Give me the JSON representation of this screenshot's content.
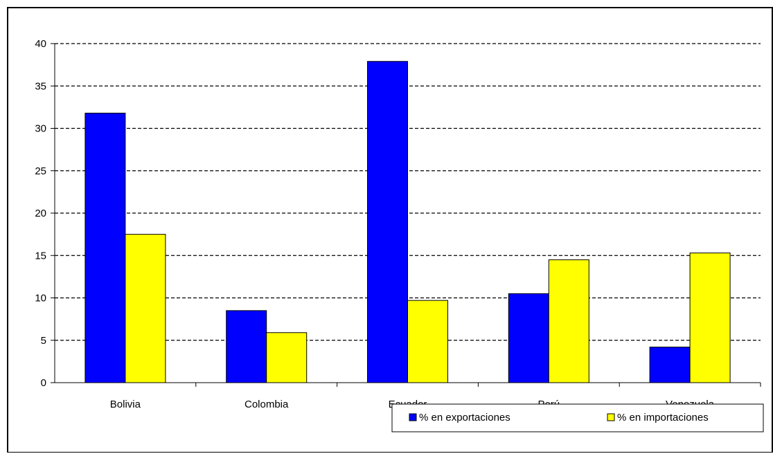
{
  "colors": {
    "series_export": "#0000FF",
    "series_import": "#FFFF00",
    "bar_outline": "#000000",
    "grid": "#000000",
    "background": "#FFFFFF"
  },
  "chart_data": {
    "type": "bar",
    "title": "",
    "xlabel": "",
    "ylabel": "",
    "categories": [
      "Bolivia",
      "Colombia",
      "Ecuador",
      "Perú",
      "Venezuela"
    ],
    "series": [
      {
        "name": "% en exportaciones",
        "values": [
          31.8,
          8.5,
          37.9,
          10.5,
          4.2
        ]
      },
      {
        "name": "% en importaciones",
        "values": [
          17.5,
          5.9,
          9.7,
          14.5,
          15.3
        ]
      }
    ],
    "ylim": [
      0,
      40
    ],
    "yticks": [
      "0",
      "5",
      "10",
      "15",
      "20",
      "25",
      "30",
      "35",
      "40"
    ],
    "grid": "horizontal dashed",
    "legend_position": "bottom-right"
  }
}
